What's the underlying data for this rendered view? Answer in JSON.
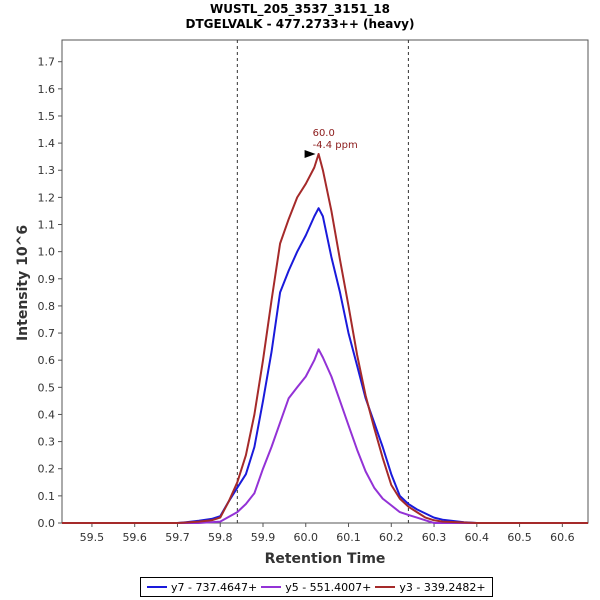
{
  "chart_data": {
    "type": "line",
    "title": "WUSTL_205_3537_3151_18",
    "subtitle": "DTGELVALK - 477.2733++ (heavy)",
    "xlabel": "Retention Time",
    "ylabel": "Intensity 10^6",
    "xlim": [
      59.43,
      60.66
    ],
    "ylim": [
      0,
      1.78
    ],
    "xticks": [
      "59.5",
      "59.6",
      "59.7",
      "59.8",
      "59.9",
      "60.0",
      "60.1",
      "60.2",
      "60.3",
      "60.4",
      "60.5",
      "60.6"
    ],
    "yticks": [
      "0.0",
      "0.1",
      "0.2",
      "0.3",
      "0.4",
      "0.5",
      "0.6",
      "0.7",
      "0.8",
      "0.9",
      "1.0",
      "1.1",
      "1.2",
      "1.3",
      "1.4",
      "1.5",
      "1.6",
      "1.7"
    ],
    "integration_bounds": [
      59.84,
      60.24
    ],
    "annotation": {
      "x": 60.03,
      "y": 1.36,
      "line1": "60.0",
      "line2": "-4.4 ppm"
    },
    "series": [
      {
        "name": "y7 - 737.4647+",
        "color": "#1a1adb",
        "x": [
          59.43,
          59.5,
          59.6,
          59.7,
          59.72,
          59.75,
          59.78,
          59.8,
          59.82,
          59.84,
          59.86,
          59.88,
          59.9,
          59.92,
          59.94,
          59.96,
          59.98,
          60.0,
          60.02,
          60.03,
          60.04,
          60.06,
          60.08,
          60.1,
          60.12,
          60.14,
          60.16,
          60.18,
          60.2,
          60.22,
          60.24,
          60.26,
          60.28,
          60.3,
          60.32,
          60.34,
          60.37,
          60.4,
          60.5,
          60.66
        ],
        "y": [
          0,
          0,
          0,
          0,
          0.003,
          0.008,
          0.015,
          0.025,
          0.08,
          0.13,
          0.18,
          0.28,
          0.45,
          0.63,
          0.85,
          0.93,
          1.0,
          1.06,
          1.13,
          1.16,
          1.13,
          0.98,
          0.85,
          0.7,
          0.58,
          0.46,
          0.37,
          0.28,
          0.18,
          0.1,
          0.07,
          0.05,
          0.035,
          0.02,
          0.012,
          0.008,
          0.003,
          0,
          0,
          0
        ]
      },
      {
        "name": "y5 - 551.4007+",
        "color": "#9332d6",
        "x": [
          59.43,
          59.5,
          59.6,
          59.7,
          59.75,
          59.8,
          59.84,
          59.86,
          59.88,
          59.9,
          59.92,
          59.94,
          59.96,
          59.98,
          60.0,
          60.02,
          60.03,
          60.04,
          60.06,
          60.08,
          60.1,
          60.12,
          60.14,
          60.16,
          60.18,
          60.2,
          60.22,
          60.24,
          60.26,
          60.28,
          60.3,
          60.4,
          60.5,
          60.66
        ],
        "y": [
          0,
          0,
          0,
          0,
          0,
          0.005,
          0.04,
          0.07,
          0.11,
          0.2,
          0.28,
          0.37,
          0.46,
          0.5,
          0.54,
          0.6,
          0.64,
          0.61,
          0.54,
          0.45,
          0.36,
          0.27,
          0.19,
          0.13,
          0.09,
          0.065,
          0.04,
          0.03,
          0.02,
          0.01,
          0,
          0,
          0,
          0
        ]
      },
      {
        "name": "y3 - 339.2482+",
        "color": "#a52a2a",
        "x": [
          59.43,
          59.5,
          59.6,
          59.7,
          59.72,
          59.75,
          59.78,
          59.8,
          59.82,
          59.84,
          59.86,
          59.88,
          59.9,
          59.92,
          59.94,
          59.96,
          59.98,
          60.0,
          60.02,
          60.03,
          60.04,
          60.06,
          60.08,
          60.1,
          60.12,
          60.14,
          60.16,
          60.18,
          60.2,
          60.22,
          60.24,
          60.26,
          60.28,
          60.3,
          60.32,
          60.4,
          60.5,
          60.66
        ],
        "y": [
          0,
          0,
          0,
          0,
          0.002,
          0.005,
          0.01,
          0.02,
          0.08,
          0.15,
          0.25,
          0.4,
          0.6,
          0.82,
          1.03,
          1.12,
          1.2,
          1.25,
          1.31,
          1.36,
          1.3,
          1.15,
          0.97,
          0.8,
          0.62,
          0.47,
          0.35,
          0.24,
          0.14,
          0.09,
          0.06,
          0.04,
          0.02,
          0.01,
          0.005,
          0,
          0,
          0
        ]
      }
    ]
  }
}
